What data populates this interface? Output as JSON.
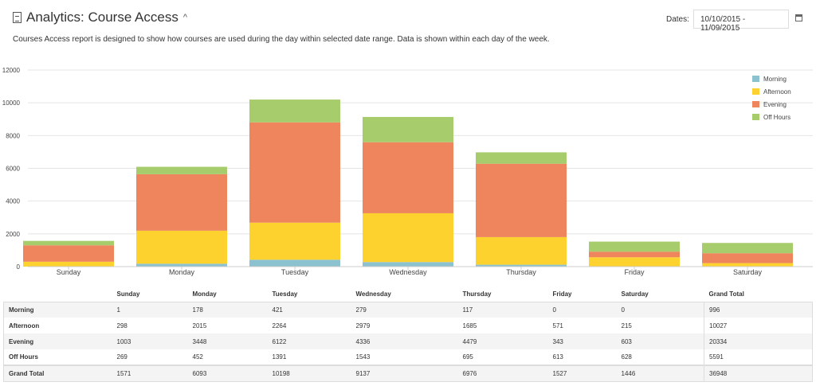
{
  "header": {
    "title": "Analytics: Course Access",
    "description": "Courses Access report is designed to show how courses are used during the day within selected date range. Data is shown within each day of the week.",
    "dates_label": "Dates:",
    "date_range": "10/10/2015 - 11/09/2015"
  },
  "chart_data": {
    "type": "bar",
    "stacked": true,
    "categories": [
      "Sunday",
      "Monday",
      "Tuesday",
      "Wednesday",
      "Thursday",
      "Friday",
      "Saturday"
    ],
    "series": [
      {
        "name": "Morning",
        "color": "#8cc1cf",
        "values": [
          1,
          178,
          421,
          279,
          117,
          0,
          0
        ]
      },
      {
        "name": "Afternoon",
        "color": "#fdd22f",
        "values": [
          298,
          2015,
          2264,
          2979,
          1685,
          571,
          215
        ]
      },
      {
        "name": "Evening",
        "color": "#ee855c",
        "values": [
          1003,
          3448,
          6122,
          4336,
          4479,
          343,
          603
        ]
      },
      {
        "name": "Off Hours",
        "color": "#a6cc6c",
        "values": [
          269,
          452,
          1391,
          1543,
          695,
          613,
          628
        ]
      }
    ],
    "ylim": [
      0,
      12000
    ],
    "yticks": [
      "0",
      "2000",
      "4000",
      "6000",
      "8000",
      "10000",
      "12000"
    ],
    "legend": "top-right",
    "grid": true
  },
  "table": {
    "headers": [
      "",
      "Sunday",
      "Monday",
      "Tuesday",
      "Wednesday",
      "Thursday",
      "Friday",
      "Saturday",
      "Grand Total"
    ],
    "rows": [
      [
        "Morning",
        "1",
        "178",
        "421",
        "279",
        "117",
        "0",
        "0",
        "996"
      ],
      [
        "Afternoon",
        "298",
        "2015",
        "2264",
        "2979",
        "1685",
        "571",
        "215",
        "10027"
      ],
      [
        "Evening",
        "1003",
        "3448",
        "6122",
        "4336",
        "4479",
        "343",
        "603",
        "20334"
      ],
      [
        "Off Hours",
        "269",
        "452",
        "1391",
        "1543",
        "695",
        "613",
        "628",
        "5591"
      ],
      [
        "Grand Total",
        "1571",
        "6093",
        "10198",
        "9137",
        "6976",
        "1527",
        "1446",
        "36948"
      ]
    ]
  }
}
